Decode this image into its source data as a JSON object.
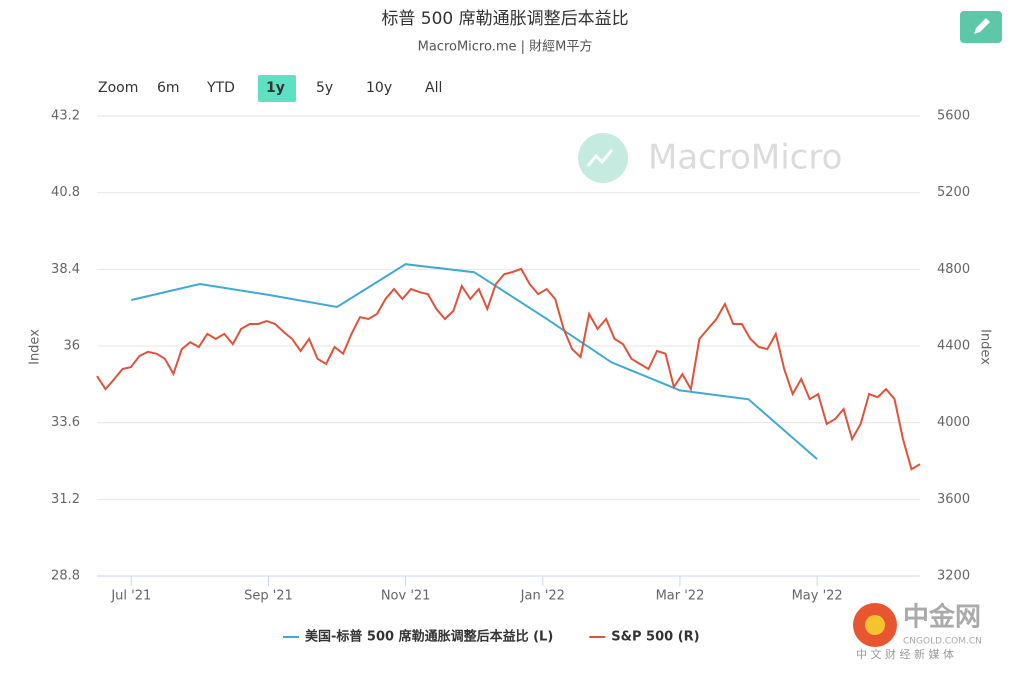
{
  "chart_data": {
    "type": "line",
    "title": "标普 500 席勒通胀调整后本益比",
    "subtitle": "MacroMicro.me | 財經M平方",
    "zoom": {
      "label": "Zoom",
      "buttons": [
        "6m",
        "YTD",
        "1y",
        "5y",
        "10y",
        "All"
      ],
      "active": "1y"
    },
    "watermark": "MacroMicro",
    "footer_watermark": {
      "name": "中金网",
      "site": "CNGOLD.COM.CN",
      "tagline": "中 文 财 经 新 媒 体"
    },
    "ylabel": "Index",
    "y2label": "Index",
    "xlim": [
      "2021-06",
      "2022-06"
    ],
    "xticks": [
      {
        "value": "2021-07",
        "label": "Jul '21"
      },
      {
        "value": "2021-09",
        "label": "Sep '21"
      },
      {
        "value": "2021-11",
        "label": "Nov '21"
      },
      {
        "value": "2022-01",
        "label": "Jan '22"
      },
      {
        "value": "2022-03",
        "label": "Mar '22"
      },
      {
        "value": "2022-05",
        "label": "May '22"
      }
    ],
    "ylim": [
      28.8,
      43.2
    ],
    "yticks": [
      28.8,
      31.2,
      33.6,
      36,
      38.4,
      40.8,
      43.2
    ],
    "y2lim": [
      3200,
      5600
    ],
    "y2ticks": [
      3200,
      3600,
      4000,
      4400,
      4800,
      5200,
      5600
    ],
    "grid": true,
    "series": [
      {
        "name": "美国-标普 500 席勒通胀调整后本益比 (L)",
        "color": "#3fa9d5",
        "x": [
          "2021-07",
          "2021-08",
          "2021-09",
          "2021-10",
          "2021-11",
          "2021-12",
          "2022-01",
          "2022-02",
          "2022-03",
          "2022-04",
          "2022-05"
        ],
        "values": [
          37.44,
          37.94,
          37.6,
          37.22,
          38.56,
          38.31,
          36.93,
          35.49,
          34.61,
          34.33,
          32.46
        ]
      },
      {
        "name": "S&P 500 (R)",
        "color": "#e0533a",
        "axis": "y2",
        "values": [
          4243,
          4175,
          4226,
          4280,
          4290,
          4348,
          4370,
          4360,
          4333,
          4255,
          4384,
          4420,
          4395,
          4463,
          4437,
          4463,
          4410,
          4489,
          4515,
          4515,
          4530,
          4515,
          4473,
          4437,
          4374,
          4437,
          4333,
          4306,
          4395,
          4360,
          4463,
          4551,
          4541,
          4567,
          4645,
          4697,
          4645,
          4697,
          4681,
          4671,
          4593,
          4541,
          4583,
          4713,
          4645,
          4697,
          4593,
          4723,
          4775,
          4786,
          4802,
          4723,
          4671,
          4697,
          4645,
          4489,
          4384,
          4342,
          4567,
          4489,
          4541,
          4437,
          4410,
          4333,
          4306,
          4280,
          4374,
          4360,
          4186,
          4253,
          4175,
          4437,
          4489,
          4541,
          4619,
          4515,
          4515,
          4437,
          4395,
          4384,
          4463,
          4280,
          4149,
          4228,
          4123,
          4149,
          3993,
          4019,
          4071,
          3914,
          3993,
          4149,
          4133,
          4175,
          4123,
          3914,
          3757,
          3783
        ]
      }
    ]
  }
}
